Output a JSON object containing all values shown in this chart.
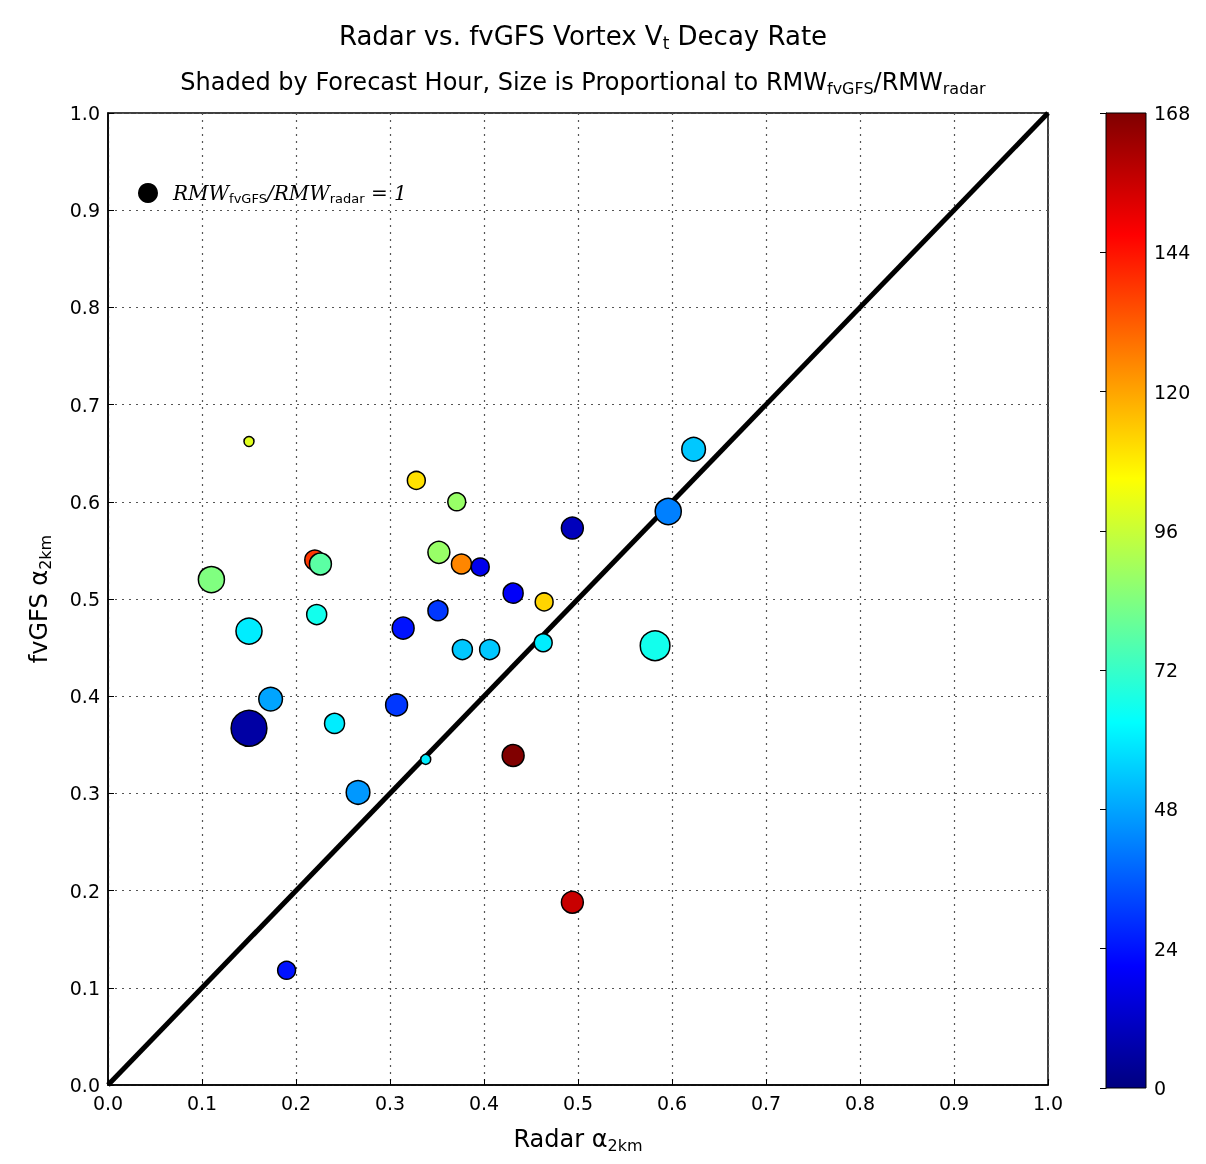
{
  "chart_data": {
    "type": "bubble",
    "title": "Radar vs. fvGFS Vortex V$_{t}$ Decay Rate",
    "subtitle": "Shaded by Forecast Hour, Size is Proportional to RMW$_{fvGFS}$/RMW$_{radar}$",
    "xlabel": "Radar α$_{2km}$",
    "ylabel": "fvGFS α$_{2km}$",
    "xlim": [
      0,
      1
    ],
    "ylim": [
      0,
      1
    ],
    "xticks": [
      {
        "value": 0,
        "label": "0.0"
      },
      {
        "value": 0.1,
        "label": "0.1"
      },
      {
        "value": 0.2,
        "label": "0.2"
      },
      {
        "value": 0.3,
        "label": "0.3"
      },
      {
        "value": 0.4,
        "label": "0.4"
      },
      {
        "value": 0.5,
        "label": "0.5"
      },
      {
        "value": 0.6,
        "label": "0.6"
      },
      {
        "value": 0.7,
        "label": "0.7"
      },
      {
        "value": 0.8,
        "label": "0.8"
      },
      {
        "value": 0.9,
        "label": "0.9"
      },
      {
        "value": 1,
        "label": "1.0"
      }
    ],
    "yticks": [
      {
        "value": 0,
        "label": "0.0"
      },
      {
        "value": 0.1,
        "label": "0.1"
      },
      {
        "value": 0.2,
        "label": "0.2"
      },
      {
        "value": 0.3,
        "label": "0.3"
      },
      {
        "value": 0.4,
        "label": "0.4"
      },
      {
        "value": 0.5,
        "label": "0.5"
      },
      {
        "value": 0.6,
        "label": "0.6"
      },
      {
        "value": 0.7,
        "label": "0.7"
      },
      {
        "value": 0.8,
        "label": "0.8"
      },
      {
        "value": 0.9,
        "label": "0.9"
      },
      {
        "value": 1,
        "label": "1.0"
      }
    ],
    "clim": [
      0,
      168
    ],
    "cticks": [
      0,
      24,
      48,
      72,
      96,
      120,
      144,
      168
    ],
    "grid": true,
    "marker": "circle",
    "size_legend": [
      {
        "value": 1,
        "label": "RMW$_{fvGFS}$/RMW$_{radar}$ = 1"
      }
    ],
    "series": [
      {
        "x": [
          0.15,
          0.11,
          0.22,
          0.226,
          0.222,
          0.15,
          0.173,
          0.15,
          0.241,
          0.266,
          0.19,
          0.328,
          0.371,
          0.352,
          0.376,
          0.396,
          0.314,
          0.351,
          0.377,
          0.406,
          0.431,
          0.464,
          0.463,
          0.307,
          0.338,
          0.431,
          0.494,
          0.494,
          0.582,
          0.596,
          0.623
        ],
        "values": [
          0.662,
          0.52,
          0.54,
          0.536,
          0.484,
          0.467,
          0.397,
          0.367,
          0.372,
          0.301,
          0.118,
          0.622,
          0.6,
          0.548,
          0.536,
          0.533,
          0.47,
          0.488,
          0.448,
          0.448,
          0.506,
          0.497,
          0.455,
          0.391,
          0.335,
          0.339,
          0.188,
          0.573,
          0.452,
          0.59,
          0.654
        ],
        "sizes": [
          0.25,
          1.7,
          1.0,
          1.2,
          1.0,
          1.7,
          1.4,
          3.2,
          1.0,
          1.4,
          0.8,
          0.8,
          0.8,
          1.2,
          1.0,
          0.8,
          1.2,
          1.0,
          1.0,
          1.0,
          1.0,
          0.8,
          0.8,
          1.2,
          0.25,
          1.2,
          1.2,
          1.2,
          2.2,
          1.7,
          1.4
        ],
        "colors": [
          "#e1ff1e",
          "#80ff80",
          "#ff3700",
          "#5bffa4",
          "#12ffed",
          "#00edff",
          "#00a4ff",
          "#0000a4",
          "#00edff",
          "#0098ff",
          "#0012ff",
          "#ffe100",
          "#98ff67",
          "#98ff67",
          "#ff8600",
          "#0000ed",
          "#0012ff",
          "#0037ff",
          "#00c8ff",
          "#00c8ff",
          "#0000f9",
          "#ffd400",
          "#00edff",
          "#0037ff",
          "#00edff",
          "#800000",
          "#c80000",
          "#0000bc",
          "#12ffed",
          "#0080ff",
          "#00c8ff"
        ]
      },
      {
        "type": "line",
        "x": [
          0,
          1
        ],
        "values": [
          0,
          1
        ],
        "color": "#000000",
        "line_style": "solid",
        "marker": "none"
      }
    ]
  }
}
